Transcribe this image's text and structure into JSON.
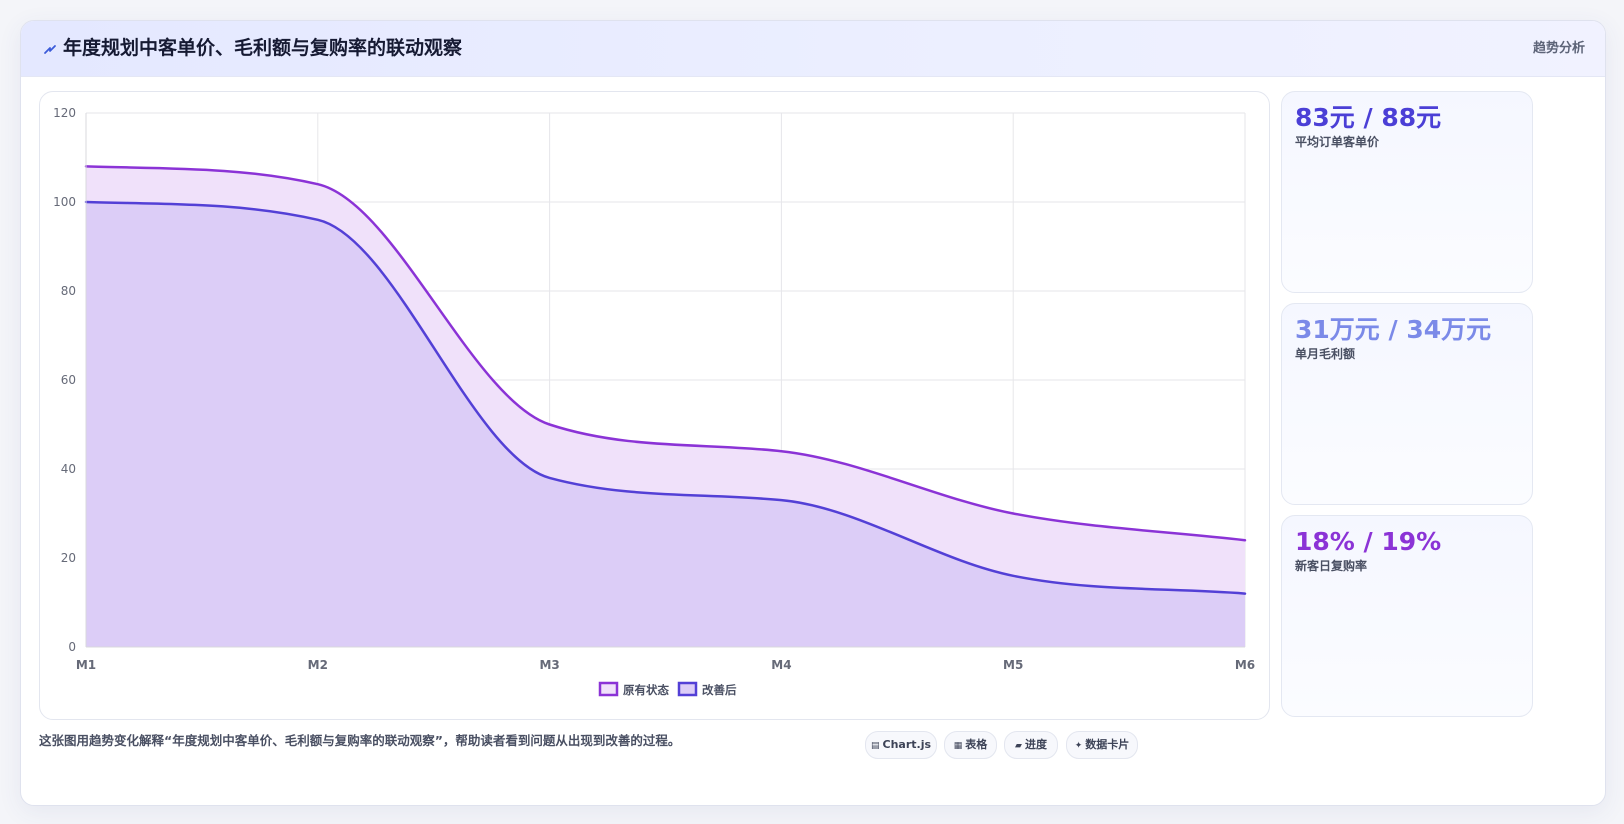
{
  "header": {
    "title": "年度规划中客单价、毛利额与复购率的联动观察",
    "tag": "趋势分析"
  },
  "kpis": [
    {
      "value": "83元 / 88元",
      "label": "平均订单客单价",
      "color": "#4b3fd6"
    },
    {
      "value": "31万元 / 34万元",
      "label": "单月毛利额",
      "color": "#7b8ae8"
    },
    {
      "value": "18% / 19%",
      "label": "新客日复购率",
      "color": "#8b33d6"
    }
  ],
  "caption": "这张图用趋势变化解释“年度规划中客单价、毛利额与复购率的联动观察”，帮助读者看到问题从出现到改善的过程。",
  "chips": [
    {
      "glyph": "▤",
      "label": "Chart.js"
    },
    {
      "glyph": "▦",
      "label": "表格"
    },
    {
      "glyph": "▰",
      "label": "进度"
    },
    {
      "glyph": "✦",
      "label": "数据卡片"
    }
  ],
  "chart_data": {
    "type": "area",
    "categories": [
      "M1",
      "M2",
      "M3",
      "M4",
      "M5",
      "M6"
    ],
    "series": [
      {
        "name": "原有状态",
        "values": [
          108,
          104,
          50,
          44,
          30,
          24
        ],
        "color": "#8b33d6",
        "fill": "#f0e1fa"
      },
      {
        "name": "改善后",
        "values": [
          100,
          96,
          38,
          33,
          16,
          12
        ],
        "color": "#5340d6",
        "fill": "#dccdf7"
      }
    ],
    "ylim": [
      0,
      120
    ],
    "yticks": [
      0,
      20,
      40,
      60,
      80,
      100,
      120
    ],
    "grid": true,
    "legend": "bottom"
  }
}
